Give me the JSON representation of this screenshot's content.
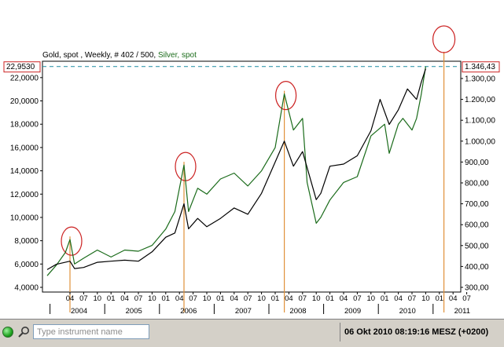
{
  "chart": {
    "title_gold": "Gold, spot , Weekly, # 402 / 500, ",
    "title_silver": "Silver, spot",
    "left_marker": "22,9530",
    "right_marker": "1.346,43",
    "left_ticks": [
      "4,0000",
      "6,0000",
      "8,0000",
      "10,0000",
      "12,0000",
      "14,0000",
      "16,0000",
      "18,0000",
      "20,0000",
      "22,0000"
    ],
    "right_ticks": [
      "300,00",
      "400,00",
      "500,00",
      "600,00",
      "700,00",
      "800,00",
      "900,00",
      "1.000,00",
      "1.100,00",
      "1.200,00",
      "1.300,00"
    ],
    "month_ticks": [
      "04",
      "07",
      "10",
      "01",
      "04",
      "07",
      "10",
      "01",
      "04",
      "07",
      "10",
      "01",
      "04",
      "07",
      "10",
      "01",
      "04",
      "07",
      "10",
      "01",
      "04",
      "07",
      "10",
      "01",
      "04",
      "07",
      "10",
      "01",
      "04",
      "07"
    ],
    "year_labels": [
      "2004",
      "2005",
      "2006",
      "2007",
      "2008",
      "2009",
      "2010",
      "2011"
    ],
    "colors": {
      "gold": "#000000",
      "silver": "#1a6b1a",
      "annotation": "#cc2222",
      "arrow": "#e0913a",
      "dashed": "#1a8ca0"
    }
  },
  "chart_data": {
    "type": "line",
    "x_unit": "date (weekly)",
    "x_range": [
      "2003-10",
      "2011-04"
    ],
    "y_left": {
      "series": "Silver, spot",
      "range": [
        4,
        23
      ]
    },
    "y_right": {
      "series": "Gold, spot",
      "range": [
        300,
        1360
      ]
    },
    "series": [
      {
        "name": "Silver, spot",
        "axis": "left",
        "x": [
          "2003-11",
          "2004-01",
          "2004-03",
          "2004-04",
          "2004-05",
          "2004-07",
          "2004-10",
          "2005-01",
          "2005-04",
          "2005-07",
          "2005-10",
          "2006-01",
          "2006-03",
          "2006-05",
          "2006-06",
          "2006-08",
          "2006-10",
          "2007-01",
          "2007-04",
          "2007-07",
          "2007-10",
          "2008-01",
          "2008-03",
          "2008-05",
          "2008-07",
          "2008-08",
          "2008-10",
          "2008-11",
          "2009-01",
          "2009-04",
          "2009-07",
          "2009-10",
          "2010-01",
          "2010-02",
          "2010-04",
          "2010-05",
          "2010-07",
          "2010-08",
          "2010-09",
          "2010-10"
        ],
        "values": [
          5.0,
          5.9,
          7.0,
          8.1,
          6.0,
          6.5,
          7.2,
          6.6,
          7.2,
          7.1,
          7.6,
          9.0,
          10.5,
          14.5,
          10.5,
          12.5,
          12.0,
          13.3,
          13.8,
          12.7,
          14.0,
          16.0,
          20.6,
          17.5,
          18.5,
          13.0,
          9.5,
          10.0,
          11.5,
          13.0,
          13.5,
          17.0,
          18.0,
          15.5,
          18.0,
          18.5,
          17.5,
          18.5,
          20.5,
          22.95
        ]
      },
      {
        "name": "Gold, spot",
        "axis": "right",
        "x": [
          "2003-11",
          "2004-01",
          "2004-04",
          "2004-05",
          "2004-07",
          "2004-10",
          "2005-01",
          "2005-04",
          "2005-07",
          "2005-10",
          "2006-01",
          "2006-03",
          "2006-05",
          "2006-06",
          "2006-08",
          "2006-10",
          "2007-01",
          "2007-04",
          "2007-07",
          "2007-10",
          "2008-01",
          "2008-03",
          "2008-05",
          "2008-07",
          "2008-10",
          "2008-11",
          "2009-01",
          "2009-04",
          "2009-07",
          "2009-10",
          "2009-12",
          "2010-02",
          "2010-04",
          "2010-06",
          "2010-08",
          "2010-09",
          "2010-10"
        ],
        "values": [
          385,
          410,
          425,
          390,
          395,
          420,
          425,
          430,
          425,
          470,
          540,
          560,
          700,
          580,
          630,
          590,
          630,
          680,
          650,
          750,
          900,
          1000,
          880,
          950,
          720,
          750,
          880,
          890,
          930,
          1050,
          1200,
          1080,
          1150,
          1250,
          1200,
          1280,
          1346.43
        ]
      }
    ]
  },
  "toolbar": {
    "search_placeholder": "Type instrument name",
    "status_text": "06 Okt 2010 08:19:16  MESZ (+0200)"
  }
}
